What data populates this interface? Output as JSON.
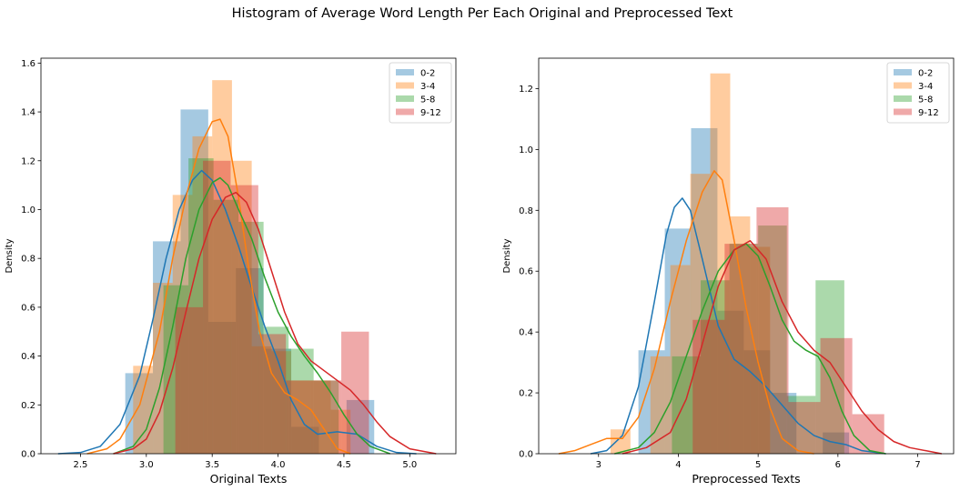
{
  "figure": {
    "suptitle": "Histogram of Average Word Length Per Each Original and Preprocessed Text"
  },
  "colors": {
    "0-2": "#1f77b4",
    "3-4": "#ff7f0e",
    "5-8": "#2ca02c",
    "9-12": "#d62728"
  },
  "chart_data": [
    {
      "type": "histogram+kde",
      "xlabel": "Original Texts",
      "ylabel": "Density",
      "xlim": [
        2.2,
        5.35
      ],
      "ylim": [
        0,
        1.62
      ],
      "xticks": [
        2.5,
        3.0,
        3.5,
        4.0,
        4.5,
        5.0
      ],
      "xtick_labels": [
        "2.5",
        "3.0",
        "3.5",
        "4.0",
        "4.5",
        "5.0"
      ],
      "yticks": [
        0.0,
        0.2,
        0.4,
        0.6,
        0.8,
        1.0,
        1.2,
        1.4,
        1.6
      ],
      "ytick_labels": [
        "0.0",
        "0.2",
        "0.4",
        "0.6",
        "0.8",
        "1.0",
        "1.2",
        "1.4",
        "1.6"
      ],
      "legend": {
        "position": "upper right",
        "entries": [
          "0-2",
          "3-4",
          "5-8",
          "9-12"
        ]
      },
      "series": [
        {
          "name": "0-2",
          "bin_edges": [
            2.84,
            3.05,
            3.26,
            3.47,
            3.68,
            3.89,
            4.1,
            4.31,
            4.52,
            4.73
          ],
          "density": [
            0.33,
            0.87,
            1.41,
            0.54,
            0.76,
            0.43,
            0.11,
            0.0,
            0.22
          ],
          "kde": [
            [
              2.33,
              0.0
            ],
            [
              2.5,
              0.005
            ],
            [
              2.65,
              0.03
            ],
            [
              2.8,
              0.12
            ],
            [
              2.95,
              0.32
            ],
            [
              3.05,
              0.55
            ],
            [
              3.15,
              0.8
            ],
            [
              3.25,
              1.0
            ],
            [
              3.35,
              1.12
            ],
            [
              3.42,
              1.16
            ],
            [
              3.5,
              1.12
            ],
            [
              3.6,
              1.0
            ],
            [
              3.7,
              0.85
            ],
            [
              3.8,
              0.68
            ],
            [
              3.9,
              0.52
            ],
            [
              4.0,
              0.38
            ],
            [
              4.1,
              0.22
            ],
            [
              4.2,
              0.12
            ],
            [
              4.3,
              0.08
            ],
            [
              4.45,
              0.09
            ],
            [
              4.6,
              0.08
            ],
            [
              4.75,
              0.03
            ],
            [
              4.9,
              0.005
            ],
            [
              5.05,
              0.0
            ]
          ]
        },
        {
          "name": "3-4",
          "bin_edges": [
            2.9,
            3.05,
            3.2,
            3.35,
            3.5,
            3.65,
            3.8,
            3.95,
            4.1,
            4.25,
            4.4,
            4.55
          ],
          "density": [
            0.36,
            0.7,
            1.06,
            1.3,
            1.53,
            1.2,
            0.44,
            0.42,
            0.3,
            0.3,
            0.18
          ],
          "kde": [
            [
              2.55,
              0.0
            ],
            [
              2.7,
              0.02
            ],
            [
              2.8,
              0.06
            ],
            [
              2.95,
              0.2
            ],
            [
              3.1,
              0.5
            ],
            [
              3.2,
              0.8
            ],
            [
              3.3,
              1.05
            ],
            [
              3.4,
              1.25
            ],
            [
              3.5,
              1.36
            ],
            [
              3.56,
              1.37
            ],
            [
              3.62,
              1.3
            ],
            [
              3.7,
              1.05
            ],
            [
              3.78,
              0.75
            ],
            [
              3.86,
              0.5
            ],
            [
              3.95,
              0.33
            ],
            [
              4.05,
              0.25
            ],
            [
              4.15,
              0.22
            ],
            [
              4.25,
              0.18
            ],
            [
              4.35,
              0.1
            ],
            [
              4.45,
              0.02
            ],
            [
              4.55,
              0.0
            ]
          ]
        },
        {
          "name": "5-8",
          "bin_edges": [
            3.13,
            3.32,
            3.51,
            3.7,
            3.89,
            4.08,
            4.27,
            4.46
          ],
          "density": [
            0.69,
            1.21,
            1.04,
            0.95,
            0.52,
            0.43,
            0.3
          ],
          "kde": [
            [
              2.75,
              0.0
            ],
            [
              2.9,
              0.03
            ],
            [
              3.0,
              0.1
            ],
            [
              3.1,
              0.27
            ],
            [
              3.2,
              0.52
            ],
            [
              3.3,
              0.8
            ],
            [
              3.4,
              1.0
            ],
            [
              3.5,
              1.11
            ],
            [
              3.56,
              1.13
            ],
            [
              3.62,
              1.1
            ],
            [
              3.7,
              1.0
            ],
            [
              3.8,
              0.88
            ],
            [
              3.9,
              0.72
            ],
            [
              4.0,
              0.58
            ],
            [
              4.1,
              0.48
            ],
            [
              4.2,
              0.4
            ],
            [
              4.3,
              0.33
            ],
            [
              4.4,
              0.25
            ],
            [
              4.5,
              0.16
            ],
            [
              4.6,
              0.08
            ],
            [
              4.7,
              0.03
            ],
            [
              4.85,
              0.0
            ]
          ]
        },
        {
          "name": "9-12",
          "bin_edges": [
            3.22,
            3.43,
            3.64,
            3.85,
            4.06,
            4.27,
            4.48,
            4.69
          ],
          "density": [
            0.6,
            1.2,
            1.1,
            0.49,
            0.3,
            0.3,
            0.5
          ],
          "kde": [
            [
              2.75,
              0.0
            ],
            [
              2.9,
              0.02
            ],
            [
              3.0,
              0.06
            ],
            [
              3.1,
              0.17
            ],
            [
              3.2,
              0.35
            ],
            [
              3.3,
              0.58
            ],
            [
              3.4,
              0.8
            ],
            [
              3.5,
              0.96
            ],
            [
              3.6,
              1.05
            ],
            [
              3.68,
              1.07
            ],
            [
              3.76,
              1.03
            ],
            [
              3.85,
              0.92
            ],
            [
              3.95,
              0.75
            ],
            [
              4.05,
              0.58
            ],
            [
              4.15,
              0.45
            ],
            [
              4.25,
              0.38
            ],
            [
              4.35,
              0.34
            ],
            [
              4.45,
              0.3
            ],
            [
              4.55,
              0.26
            ],
            [
              4.65,
              0.2
            ],
            [
              4.75,
              0.13
            ],
            [
              4.85,
              0.07
            ],
            [
              5.0,
              0.02
            ],
            [
              5.2,
              0.0
            ]
          ]
        }
      ]
    },
    {
      "type": "histogram+kde",
      "xlabel": "Preprocessed Texts",
      "ylabel": "Density",
      "xlim": [
        2.25,
        7.45
      ],
      "ylim": [
        0,
        1.3
      ],
      "xticks": [
        3,
        4,
        5,
        6,
        7
      ],
      "xtick_labels": [
        "3",
        "4",
        "5",
        "6",
        "7"
      ],
      "yticks": [
        0.0,
        0.2,
        0.4,
        0.6,
        0.8,
        1.0,
        1.2
      ],
      "ytick_labels": [
        "0.0",
        "0.2",
        "0.4",
        "0.6",
        "0.8",
        "1.0",
        "1.2"
      ],
      "legend": {
        "position": "upper right",
        "entries": [
          "0-2",
          "3-4",
          "5-8",
          "9-12"
        ]
      },
      "series": [
        {
          "name": "0-2",
          "bin_edges": [
            3.5,
            3.83,
            4.16,
            4.49,
            4.82,
            5.15,
            5.48,
            5.81,
            6.14
          ],
          "density": [
            0.34,
            0.74,
            1.07,
            0.47,
            0.34,
            0.2,
            0.0,
            0.07
          ],
          "kde": [
            [
              2.9,
              0.0
            ],
            [
              3.1,
              0.01
            ],
            [
              3.3,
              0.06
            ],
            [
              3.5,
              0.22
            ],
            [
              3.7,
              0.5
            ],
            [
              3.85,
              0.72
            ],
            [
              3.95,
              0.81
            ],
            [
              4.05,
              0.84
            ],
            [
              4.15,
              0.8
            ],
            [
              4.3,
              0.64
            ],
            [
              4.5,
              0.42
            ],
            [
              4.7,
              0.31
            ],
            [
              4.9,
              0.27
            ],
            [
              5.1,
              0.22
            ],
            [
              5.3,
              0.16
            ],
            [
              5.5,
              0.1
            ],
            [
              5.7,
              0.06
            ],
            [
              5.9,
              0.04
            ],
            [
              6.1,
              0.03
            ],
            [
              6.3,
              0.01
            ],
            [
              6.6,
              0.0
            ]
          ]
        },
        {
          "name": "3-4",
          "bin_edges": [
            3.15,
            3.4,
            3.65,
            3.9,
            4.15,
            4.4,
            4.65,
            4.9,
            5.15
          ],
          "density": [
            0.08,
            0.0,
            0.32,
            0.62,
            0.92,
            1.25,
            0.78,
            0.68
          ],
          "kde": [
            [
              2.5,
              0.0
            ],
            [
              2.7,
              0.01
            ],
            [
              2.9,
              0.03
            ],
            [
              3.1,
              0.05
            ],
            [
              3.3,
              0.05
            ],
            [
              3.5,
              0.12
            ],
            [
              3.7,
              0.28
            ],
            [
              3.9,
              0.5
            ],
            [
              4.1,
              0.7
            ],
            [
              4.3,
              0.86
            ],
            [
              4.45,
              0.93
            ],
            [
              4.55,
              0.9
            ],
            [
              4.7,
              0.7
            ],
            [
              4.85,
              0.48
            ],
            [
              5.0,
              0.3
            ],
            [
              5.15,
              0.15
            ],
            [
              5.3,
              0.05
            ],
            [
              5.5,
              0.01
            ],
            [
              5.7,
              0.0
            ]
          ]
        },
        {
          "name": "5-8",
          "bin_edges": [
            3.92,
            4.28,
            4.64,
            5.0,
            5.36,
            5.72,
            6.08
          ],
          "density": [
            0.32,
            0.57,
            0.69,
            0.75,
            0.19,
            0.57
          ],
          "kde": [
            [
              3.2,
              0.0
            ],
            [
              3.5,
              0.02
            ],
            [
              3.7,
              0.07
            ],
            [
              3.9,
              0.17
            ],
            [
              4.1,
              0.32
            ],
            [
              4.3,
              0.47
            ],
            [
              4.5,
              0.6
            ],
            [
              4.7,
              0.67
            ],
            [
              4.85,
              0.69
            ],
            [
              5.0,
              0.65
            ],
            [
              5.15,
              0.55
            ],
            [
              5.3,
              0.44
            ],
            [
              5.45,
              0.37
            ],
            [
              5.6,
              0.34
            ],
            [
              5.75,
              0.32
            ],
            [
              5.9,
              0.25
            ],
            [
              6.05,
              0.14
            ],
            [
              6.2,
              0.06
            ],
            [
              6.4,
              0.01
            ],
            [
              6.6,
              0.0
            ]
          ]
        },
        {
          "name": "9-12",
          "bin_edges": [
            4.18,
            4.58,
            4.98,
            5.38,
            5.78,
            6.18,
            6.58
          ],
          "density": [
            0.44,
            0.69,
            0.81,
            0.17,
            0.38,
            0.13
          ],
          "kde": [
            [
              3.3,
              0.0
            ],
            [
              3.6,
              0.02
            ],
            [
              3.9,
              0.07
            ],
            [
              4.1,
              0.18
            ],
            [
              4.3,
              0.36
            ],
            [
              4.5,
              0.55
            ],
            [
              4.7,
              0.67
            ],
            [
              4.9,
              0.7
            ],
            [
              5.1,
              0.64
            ],
            [
              5.3,
              0.5
            ],
            [
              5.5,
              0.4
            ],
            [
              5.7,
              0.34
            ],
            [
              5.9,
              0.3
            ],
            [
              6.1,
              0.22
            ],
            [
              6.3,
              0.14
            ],
            [
              6.5,
              0.08
            ],
            [
              6.7,
              0.04
            ],
            [
              6.9,
              0.02
            ],
            [
              7.1,
              0.01
            ],
            [
              7.3,
              0.0
            ]
          ]
        }
      ]
    }
  ]
}
